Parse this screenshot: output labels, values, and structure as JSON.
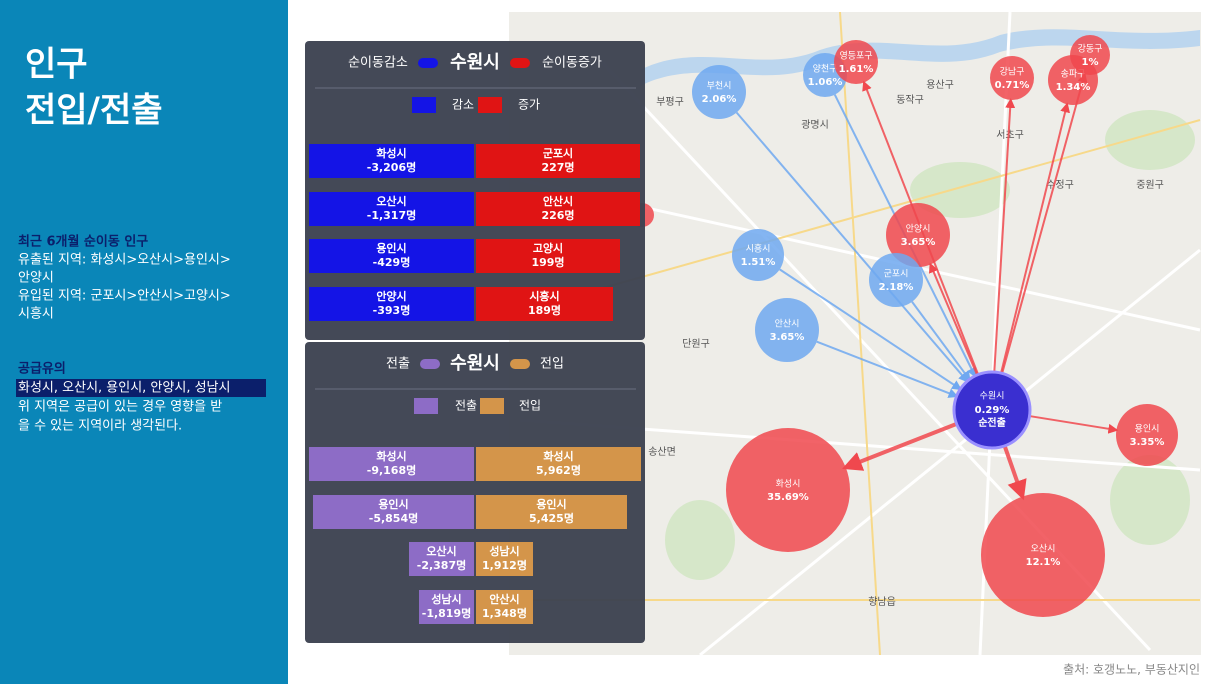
{
  "sidebar": {
    "title": [
      "인구",
      "전입/전출"
    ],
    "section1": {
      "heading": "최근 6개월 순이동 인구",
      "lines": [
        "유출된 지역: 화성시>오산시>용인시>",
        "안양시",
        "유입된 지역: 군포시>안산시>고양시>",
        "시흥시"
      ]
    },
    "section2": {
      "heading": "공급유의",
      "highlight": "화성시, 오산시, 용인시, 안양시, 성남시",
      "lines": [
        "위 지역은 공급이 있는 경우 영향을 받",
        "을 수 있는 지역이라 생각된다."
      ]
    }
  },
  "panels": [
    {
      "header": {
        "left": "순이동감소",
        "center": "수원시",
        "right": "순이동증가"
      },
      "legend": [
        "감소",
        "증가"
      ],
      "colors": [
        "#1414e6",
        "#e01414"
      ],
      "rows": [
        {
          "left": [
            "화성시",
            "-3,206명"
          ],
          "right": [
            "군포시",
            "227명"
          ]
        },
        {
          "left": [
            "오산시",
            "-1,317명"
          ],
          "right": [
            "안산시",
            "226명"
          ]
        },
        {
          "left": [
            "용인시",
            "-429명"
          ],
          "right": [
            "고양시",
            "199명"
          ]
        },
        {
          "left": [
            "안양시",
            "-393명"
          ],
          "right": [
            "시흥시",
            "189명"
          ]
        }
      ]
    },
    {
      "header": {
        "left": "전출",
        "center": "수원시",
        "right": "전입"
      },
      "legend": [
        "전출",
        "전입"
      ],
      "colors": [
        "#8d6cc6",
        "#d4954a"
      ],
      "rows": [
        {
          "left": [
            "화성시",
            "-9,168명"
          ],
          "right": [
            "화성시",
            "5,962명"
          ]
        },
        {
          "left": [
            "용인시",
            "-5,854명"
          ],
          "right": [
            "용인시",
            "5,425명"
          ]
        },
        {
          "left": [
            "오산시",
            "-2,387명"
          ],
          "right": [
            "성남시",
            "1,912명"
          ]
        },
        {
          "left": [
            "성남시",
            "-1,819명"
          ],
          "right": [
            "안산시",
            "1,348명"
          ]
        }
      ]
    }
  ],
  "map": {
    "center": {
      "name": "수원시",
      "label": "0.29%",
      "note": "순전출",
      "color": "#3a2fd0"
    },
    "bubbles": [
      {
        "name": "부천시",
        "label": "2.06%",
        "color": "#6fa8f0"
      },
      {
        "name": "양천구",
        "label": "1.06%",
        "color": "#6fa8f0"
      },
      {
        "name": "영등포구",
        "label": "1.61%",
        "color": "#f0484e"
      },
      {
        "name": "강남구",
        "label": "0.71%",
        "color": "#f0484e"
      },
      {
        "name": "송파구",
        "label": "1.34%",
        "color": "#f0484e"
      },
      {
        "name": "강동구",
        "label": "1%",
        "color": "#f0484e"
      },
      {
        "name": "안양시",
        "label": "3.65%",
        "color": "#f0484e"
      },
      {
        "name": "시흥시",
        "label": "1.51%",
        "color": "#6fa8f0"
      },
      {
        "name": "군포시",
        "label": "2.18%",
        "color": "#6fa8f0"
      },
      {
        "name": "안산시",
        "label": "3.65%",
        "color": "#6fa8f0"
      },
      {
        "name": "용인시",
        "label": "3.35%",
        "color": "#f0484e"
      },
      {
        "name": "화성시",
        "label": "35.69%",
        "color": "#f0484e"
      },
      {
        "name": "오산시",
        "label": "12.1%",
        "color": "#f0484e"
      }
    ],
    "places": [
      "광명시",
      "부평구",
      "동작구",
      "용산구",
      "서초구",
      "수정구",
      "중원구",
      "단원구",
      "송산면",
      "향남읍"
    ]
  },
  "source": "출처: 호갱노노, 부동산지인"
}
